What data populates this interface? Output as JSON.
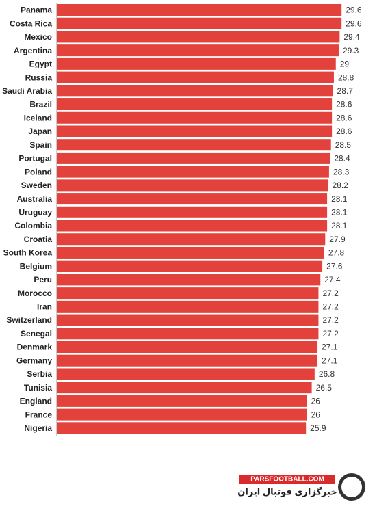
{
  "chart_data": {
    "type": "bar",
    "orientation": "horizontal",
    "color": "#e2423b",
    "categories": [
      "Panama",
      "Costa Rica",
      "Mexico",
      "Argentina",
      "Egypt",
      "Russia",
      "Saudi Arabia",
      "Brazil",
      "Iceland",
      "Japan",
      "Spain",
      "Portugal",
      "Poland",
      "Sweden",
      "Australia",
      "Uruguay",
      "Colombia",
      "Croatia",
      "South Korea",
      "Belgium",
      "Peru",
      "Morocco",
      "Iran",
      "Switzerland",
      "Senegal",
      "Denmark",
      "Germany",
      "Serbia",
      "Tunisia",
      "England",
      "France",
      "Nigeria"
    ],
    "values": [
      29.6,
      29.6,
      29.4,
      29.3,
      29,
      28.8,
      28.7,
      28.6,
      28.6,
      28.6,
      28.5,
      28.4,
      28.3,
      28.2,
      28.1,
      28.1,
      28.1,
      27.9,
      27.8,
      27.6,
      27.4,
      27.2,
      27.2,
      27.2,
      27.2,
      27.1,
      27.1,
      26.8,
      26.5,
      26,
      26,
      25.9
    ],
    "xlim": [
      0,
      33
    ]
  },
  "watermark": {
    "site": "PARSFOOTBALL.COM",
    "tagline": "خبرگزاری فوتبال ایران"
  }
}
